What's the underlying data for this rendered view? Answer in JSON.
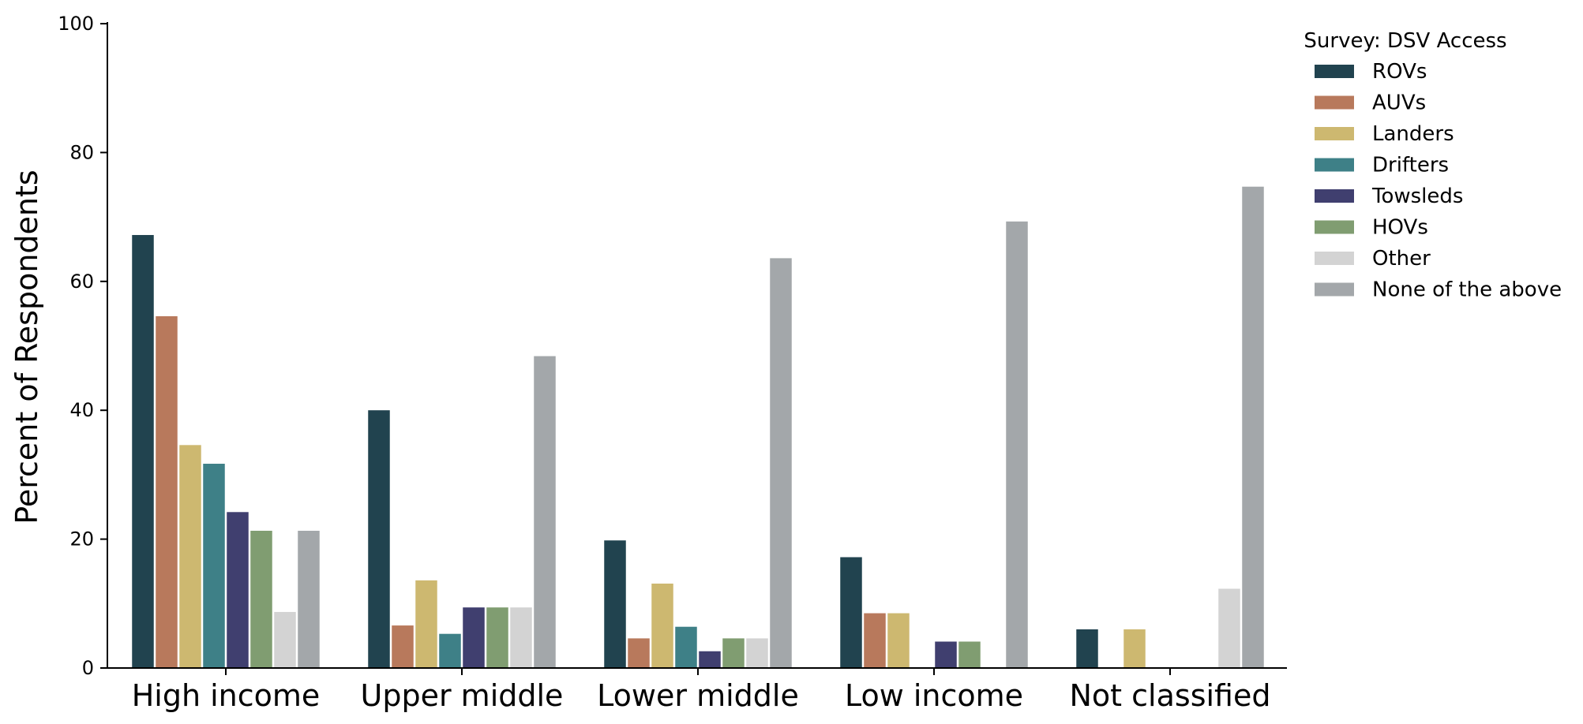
{
  "chart_data": {
    "type": "bar",
    "title": "",
    "xlabel": "",
    "ylabel": "Percent of Respondents",
    "ylim": [
      0,
      100
    ],
    "yticks": [
      0,
      20,
      40,
      60,
      80,
      100
    ],
    "grid": false,
    "legend": {
      "title": "Survey: DSV Access",
      "placement": "top-right (outside)"
    },
    "categories": [
      "High income",
      "Upper middle",
      "Lower middle",
      "Low income",
      "Not classified"
    ],
    "series": [
      {
        "name": "ROVs",
        "color": "#21434f",
        "values": [
          67.2,
          40.0,
          19.8,
          17.2,
          6.0
        ]
      },
      {
        "name": "AUVs",
        "color": "#b8795c",
        "values": [
          54.6,
          6.6,
          4.6,
          8.5,
          0
        ]
      },
      {
        "name": "Landers",
        "color": "#cdb870",
        "values": [
          34.6,
          13.6,
          13.1,
          8.5,
          6.0
        ]
      },
      {
        "name": "Drifters",
        "color": "#3e8087",
        "values": [
          31.7,
          5.3,
          6.4,
          0,
          0
        ]
      },
      {
        "name": "Towsleds",
        "color": "#403f6f",
        "values": [
          24.2,
          9.4,
          2.6,
          4.1,
          0
        ]
      },
      {
        "name": "HOVs",
        "color": "#809d71",
        "values": [
          21.3,
          9.4,
          4.6,
          4.1,
          0
        ]
      },
      {
        "name": "Other",
        "color": "#d3d3d3",
        "values": [
          8.7,
          9.4,
          4.6,
          0,
          12.3
        ]
      },
      {
        "name": "None of the above",
        "color": "#a3a7aa",
        "values": [
          21.3,
          48.4,
          63.6,
          69.3,
          74.7
        ]
      }
    ]
  }
}
